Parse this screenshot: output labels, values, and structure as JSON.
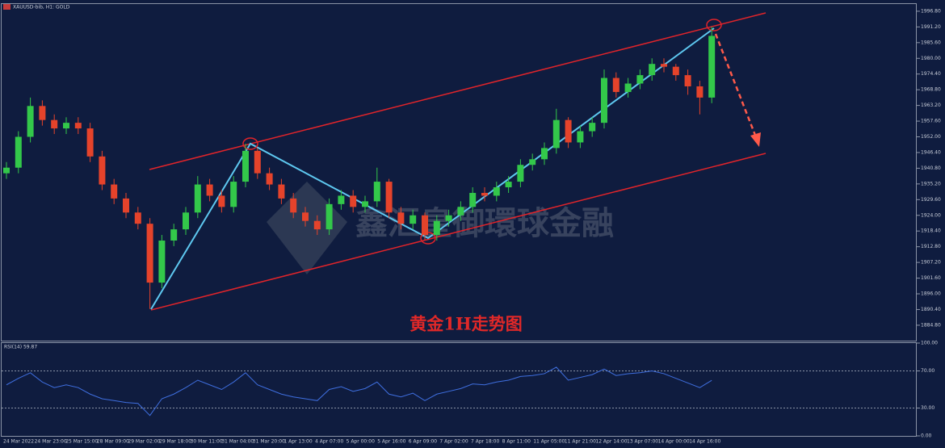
{
  "chart_data": [
    {
      "type": "candlestick",
      "title": "XAUUSD-bib, H1:  GOLD",
      "annotation": "黄金1H走势图",
      "watermark": "鑫汇皇御環球金融",
      "up_color": "#33c84a",
      "down_color": "#e5432b",
      "open": [
        1939,
        1941,
        1952,
        1963,
        1958,
        1955,
        1957,
        1955,
        1945,
        1935,
        1930,
        1925,
        1921,
        1900,
        1915,
        1919,
        1925,
        1935,
        1931,
        1927,
        1936,
        1947,
        1939,
        1935,
        1930,
        1925,
        1922,
        1919,
        1928,
        1931,
        1927,
        1929,
        1936,
        1925,
        1921,
        1924,
        1917,
        1922,
        1924,
        1927,
        1932,
        1931,
        1934,
        1936,
        1942,
        1944,
        1948,
        1958,
        1950,
        1954,
        1957,
        1973,
        1968,
        1971,
        1974,
        1978,
        1977,
        1974,
        1970,
        1966
      ],
      "high": [
        1943,
        1954,
        1966,
        1965,
        1960,
        1959,
        1959,
        1957,
        1947,
        1937,
        1932,
        1927,
        1923,
        1917,
        1921,
        1927,
        1938,
        1937,
        1933,
        1938,
        1949.5,
        1948,
        1941,
        1937,
        1932,
        1927,
        1924,
        1930,
        1933,
        1933,
        1931,
        1941,
        1937,
        1927,
        1926,
        1925,
        1924,
        1926,
        1929,
        1934,
        1934,
        1936,
        1938,
        1944,
        1946,
        1950,
        1962,
        1959,
        1956,
        1959,
        1976,
        1975,
        1973,
        1976,
        1980,
        1980,
        1978,
        1976,
        1972,
        1991.3
      ],
      "low": [
        1937,
        1939,
        1950,
        1956,
        1953,
        1953,
        1953,
        1943,
        1933,
        1928,
        1923,
        1919,
        1890.6,
        1898,
        1913,
        1917,
        1923,
        1929,
        1925,
        1925,
        1934,
        1937,
        1933,
        1928,
        1923,
        1920,
        1917,
        1917,
        1926,
        1925,
        1925,
        1927,
        1923,
        1919,
        1919,
        1915.3,
        1915,
        1920,
        1922,
        1925,
        1929,
        1929,
        1932,
        1934,
        1940,
        1942,
        1946,
        1948,
        1948,
        1952,
        1955,
        1966,
        1966,
        1969,
        1972,
        1975,
        1972,
        1967,
        1960,
        1964
      ],
      "close": [
        1941,
        1952,
        1963,
        1958,
        1955,
        1957,
        1955,
        1945,
        1935,
        1930,
        1925,
        1921,
        1900,
        1915,
        1919,
        1925,
        1935,
        1931,
        1927,
        1936,
        1947,
        1939,
        1935,
        1930,
        1925,
        1922,
        1919,
        1928,
        1931,
        1927,
        1929,
        1936,
        1925,
        1921,
        1924,
        1917,
        1922,
        1924,
        1927,
        1932,
        1931,
        1934,
        1936,
        1942,
        1944,
        1948,
        1958,
        1950,
        1954,
        1957,
        1973,
        1968,
        1971,
        1974,
        1978,
        1977,
        1974,
        1970,
        1966,
        1988
      ],
      "ylim": [
        1879.3,
        1998.5
      ],
      "yticks": [
        {
          "value": 1996.8,
          "label": "1996.80"
        },
        {
          "value": 1991.2,
          "label": "1991.20"
        },
        {
          "value": 1985.6,
          "label": "1985.60"
        },
        {
          "value": 1980,
          "label": "1980.00"
        },
        {
          "value": 1974.4,
          "label": "1974.40"
        },
        {
          "value": 1968.8,
          "label": "1968.80"
        },
        {
          "value": 1963.2,
          "label": "1963.20"
        },
        {
          "value": 1957.6,
          "label": "1957.60"
        },
        {
          "value": 1952,
          "label": "1952.00"
        },
        {
          "value": 1946.4,
          "label": "1946.40"
        },
        {
          "value": 1940.8,
          "label": "1940.80"
        },
        {
          "value": 1935.2,
          "label": "1935.20"
        },
        {
          "value": 1929.6,
          "label": "1929.60"
        },
        {
          "value": 1924,
          "label": "1924.00"
        },
        {
          "value": 1918.4,
          "label": "1918.40"
        },
        {
          "value": 1912.8,
          "label": "1912.80"
        },
        {
          "value": 1907.2,
          "label": "1907.20"
        },
        {
          "value": 1901.6,
          "label": "1901.60"
        },
        {
          "value": 1896,
          "label": "1896.00"
        },
        {
          "value": 1890.4,
          "label": "1890.40"
        },
        {
          "value": 1884.8,
          "label": "1884.80"
        }
      ],
      "xtick_labels": [
        "24 Mar 2022",
        "24 Mar 23:00",
        "25 Mar 15:00",
        "28 Mar 09:00",
        "29 Mar 02:00",
        "29 Mar 18:00",
        "30 Mar 11:00",
        "31 Mar 04:00",
        "31 Mar 20:00",
        "1 Apr 13:00",
        "4 Apr 07:00",
        "5 Apr 00:00",
        "5 Apr 16:00",
        "6 Apr 09:00",
        "7 Apr 02:00",
        "7 Apr 18:00",
        "8 Apr 11:00",
        "11 Apr 05:00",
        "11 Apr 21:00",
        "12 Apr 14:00",
        "13 Apr 07:00",
        "14 Apr 00:00",
        "14 Apr 16:00"
      ]
    },
    {
      "type": "line",
      "title": "RSI(14) 59.87",
      "color": "#3f6fe0",
      "values": [
        55,
        62,
        68,
        58,
        52,
        55,
        52,
        45,
        40,
        38,
        36,
        35,
        22,
        40,
        45,
        52,
        60,
        55,
        50,
        58,
        68,
        55,
        50,
        45,
        42,
        40,
        38,
        50,
        53,
        48,
        51,
        58,
        45,
        42,
        46,
        38,
        45,
        48,
        51,
        56,
        55,
        58,
        60,
        64,
        65,
        67,
        74,
        60,
        63,
        66,
        72,
        65,
        67,
        68,
        70,
        67,
        62,
        57,
        52,
        59.87
      ],
      "ylim": [
        0,
        100
      ],
      "yticks": [
        {
          "value": 100,
          "label": "100.00"
        },
        {
          "value": 70,
          "label": "70.00"
        },
        {
          "value": 30,
          "label": "30.00"
        },
        {
          "value": 0,
          "label": "0.00"
        }
      ]
    }
  ]
}
